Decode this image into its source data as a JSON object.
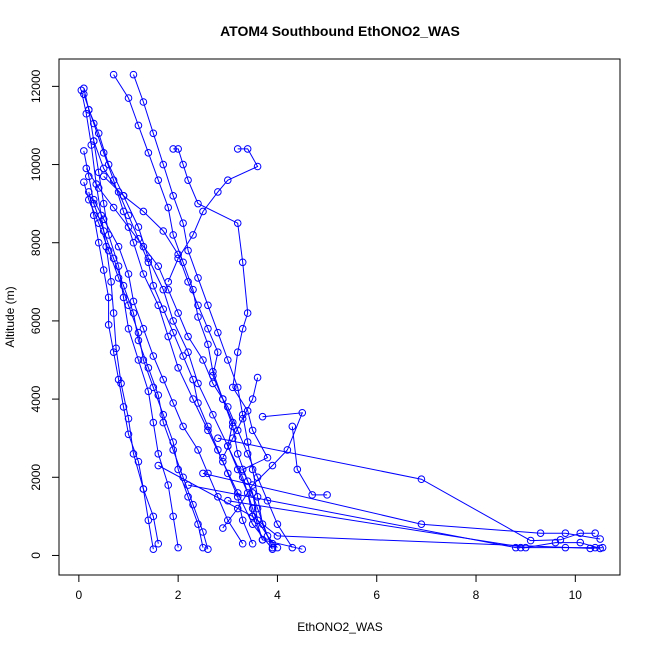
{
  "chart_data": {
    "type": "scatter",
    "title": "ATOM4 Southbound EthONO2_WAS",
    "xlabel": "EthONO2_WAS",
    "ylabel": "Altitude (m)",
    "xlim": [
      -0.4,
      10.9
    ],
    "ylim": [
      -500,
      12700
    ],
    "x_ticks": [
      "0",
      "2",
      "4",
      "6",
      "8",
      "10"
    ],
    "x_tick_values": [
      0,
      2,
      4,
      6,
      8,
      10
    ],
    "y_ticks": [
      "0",
      "2000",
      "4000",
      "6000",
      "8000",
      "10000",
      "12000"
    ],
    "y_tick_values": [
      0,
      2000,
      4000,
      6000,
      8000,
      10000,
      12000
    ],
    "grid": false,
    "legend": "none",
    "marker": "open-circle",
    "color": "#0000ff",
    "series": [
      {
        "values": [
          [
            0.1,
            11950
          ],
          [
            0.2,
            11400
          ],
          [
            0.3,
            10600
          ],
          [
            0.4,
            9800
          ],
          [
            0.5,
            9000
          ],
          [
            0.6,
            8200
          ],
          [
            0.8,
            7400
          ],
          [
            0.9,
            6600
          ],
          [
            1.0,
            5800
          ],
          [
            1.2,
            5000
          ],
          [
            1.4,
            4200
          ],
          [
            1.5,
            3400
          ],
          [
            1.6,
            2600
          ],
          [
            1.8,
            1800
          ],
          [
            1.9,
            1000
          ],
          [
            2.0,
            200
          ]
        ]
      },
      {
        "values": [
          [
            0.05,
            11900
          ],
          [
            0.15,
            11300
          ],
          [
            0.25,
            10500
          ],
          [
            0.35,
            9500
          ],
          [
            0.45,
            8700
          ],
          [
            0.55,
            7900
          ],
          [
            0.65,
            7000
          ],
          [
            0.7,
            6200
          ],
          [
            0.75,
            5300
          ],
          [
            0.85,
            4400
          ],
          [
            1.0,
            3500
          ],
          [
            1.1,
            2600
          ],
          [
            1.3,
            1700
          ],
          [
            1.4,
            900
          ],
          [
            1.5,
            160
          ]
        ]
      },
      {
        "values": [
          [
            0.1,
            11800
          ],
          [
            0.3,
            11050
          ],
          [
            0.5,
            10300
          ],
          [
            0.7,
            9600
          ],
          [
            0.9,
            8800
          ],
          [
            1.1,
            8000
          ],
          [
            1.3,
            7200
          ],
          [
            1.6,
            6400
          ],
          [
            1.8,
            5600
          ],
          [
            2.0,
            4800
          ],
          [
            2.3,
            4000
          ],
          [
            2.6,
            3200
          ],
          [
            2.9,
            2400
          ],
          [
            3.2,
            1600
          ],
          [
            3.5,
            800
          ],
          [
            3.9,
            160
          ]
        ]
      },
      {
        "values": [
          [
            0.2,
            11400
          ],
          [
            0.4,
            10800
          ],
          [
            0.6,
            10000
          ],
          [
            0.9,
            9200
          ],
          [
            1.2,
            8400
          ],
          [
            1.4,
            7600
          ],
          [
            1.7,
            6800
          ],
          [
            1.9,
            6000
          ],
          [
            2.2,
            5200
          ],
          [
            2.4,
            4400
          ],
          [
            2.7,
            3600
          ],
          [
            3.0,
            2800
          ],
          [
            3.3,
            2000
          ],
          [
            3.5,
            1200
          ],
          [
            3.7,
            400
          ],
          [
            4.5,
            160
          ]
        ]
      },
      {
        "values": [
          [
            0.1,
            10350
          ],
          [
            0.2,
            9700
          ],
          [
            0.3,
            9000
          ],
          [
            0.5,
            8300
          ],
          [
            0.7,
            7600
          ],
          [
            0.9,
            6900
          ],
          [
            1.1,
            6200
          ],
          [
            1.2,
            5500
          ],
          [
            1.4,
            4800
          ],
          [
            1.6,
            4100
          ],
          [
            1.7,
            3400
          ],
          [
            1.9,
            2700
          ],
          [
            2.1,
            2000
          ],
          [
            2.3,
            1300
          ],
          [
            2.5,
            600
          ],
          [
            2.6,
            160
          ]
        ]
      },
      {
        "values": [
          [
            0.15,
            9900
          ],
          [
            0.4,
            9400
          ],
          [
            0.7,
            8900
          ],
          [
            1.0,
            8400
          ],
          [
            1.3,
            7900
          ],
          [
            1.6,
            7400
          ],
          [
            1.8,
            6800
          ],
          [
            2.0,
            6200
          ],
          [
            2.2,
            5600
          ],
          [
            2.5,
            5000
          ],
          [
            2.7,
            4400
          ],
          [
            3.0,
            3800
          ],
          [
            3.2,
            3200
          ],
          [
            3.4,
            2600
          ],
          [
            3.6,
            2000
          ],
          [
            3.8,
            1400
          ],
          [
            4.0,
            800
          ],
          [
            4.3,
            200
          ]
        ]
      },
      {
        "values": [
          [
            0.7,
            12300
          ],
          [
            1.0,
            11700
          ],
          [
            1.2,
            11000
          ],
          [
            1.4,
            10300
          ],
          [
            1.6,
            9600
          ],
          [
            1.8,
            8900
          ],
          [
            1.9,
            8200
          ],
          [
            2.1,
            7500
          ],
          [
            2.3,
            6800
          ],
          [
            2.4,
            6100
          ],
          [
            2.6,
            5400
          ],
          [
            2.7,
            4700
          ],
          [
            2.9,
            4000
          ],
          [
            3.1,
            3300
          ],
          [
            3.2,
            2600
          ],
          [
            3.4,
            1900
          ],
          [
            3.6,
            1200
          ],
          [
            3.8,
            500
          ],
          [
            4.0,
            200
          ]
        ]
      },
      {
        "values": [
          [
            1.1,
            12300
          ],
          [
            1.3,
            11600
          ],
          [
            1.5,
            10800
          ],
          [
            1.7,
            10000
          ],
          [
            1.9,
            9200
          ],
          [
            2.1,
            8500
          ],
          [
            2.2,
            7800
          ],
          [
            2.4,
            7100
          ],
          [
            2.6,
            6400
          ],
          [
            2.8,
            5700
          ],
          [
            3.0,
            5000
          ],
          [
            3.2,
            4300
          ],
          [
            3.3,
            3600
          ],
          [
            3.4,
            2900
          ],
          [
            3.5,
            2200
          ],
          [
            3.6,
            1500
          ],
          [
            3.7,
            800
          ],
          [
            3.9,
            200
          ]
        ]
      },
      {
        "values": [
          [
            3.2,
            10400
          ],
          [
            3.4,
            10400
          ],
          [
            3.6,
            9950
          ],
          [
            3.0,
            9600
          ],
          [
            2.8,
            9300
          ],
          [
            2.5,
            8800
          ],
          [
            2.3,
            8200
          ],
          [
            2.0,
            7600
          ],
          [
            1.8,
            7000
          ]
        ]
      },
      {
        "values": [
          [
            1.9,
            10400
          ],
          [
            2.0,
            10400
          ],
          [
            2.1,
            10000
          ],
          [
            2.2,
            9600
          ],
          [
            2.4,
            9000
          ],
          [
            3.2,
            8500
          ],
          [
            3.3,
            7500
          ],
          [
            3.4,
            6200
          ],
          [
            3.3,
            5800
          ],
          [
            3.2,
            5200
          ],
          [
            3.1,
            4300
          ],
          [
            3.4,
            3700
          ],
          [
            3.5,
            3200
          ],
          [
            3.8,
            2500
          ],
          [
            3.3,
            2200
          ],
          [
            3.5,
            1600
          ],
          [
            3.6,
            900
          ],
          [
            3.9,
            300
          ]
        ]
      },
      {
        "values": [
          [
            0.3,
            9100
          ],
          [
            0.5,
            8600
          ],
          [
            0.8,
            7900
          ],
          [
            1.0,
            7200
          ],
          [
            1.1,
            6500
          ],
          [
            1.3,
            5800
          ],
          [
            1.5,
            5100
          ],
          [
            1.7,
            4500
          ],
          [
            1.9,
            3900
          ],
          [
            2.1,
            3300
          ],
          [
            2.4,
            2700
          ],
          [
            2.6,
            2100
          ],
          [
            2.8,
            1500
          ],
          [
            3.0,
            900
          ],
          [
            3.3,
            300
          ]
        ]
      },
      {
        "values": [
          [
            0.2,
            9300
          ],
          [
            0.3,
            8700
          ],
          [
            0.4,
            8000
          ],
          [
            0.5,
            7300
          ],
          [
            0.6,
            6600
          ],
          [
            0.6,
            5900
          ],
          [
            0.7,
            5200
          ],
          [
            0.8,
            4500
          ],
          [
            0.9,
            3800
          ],
          [
            1.0,
            3100
          ],
          [
            1.2,
            2400
          ],
          [
            1.3,
            1700
          ],
          [
            1.5,
            1000
          ],
          [
            1.6,
            300
          ]
        ]
      },
      {
        "values": [
          [
            0.5,
            9700
          ],
          [
            0.9,
            9200
          ],
          [
            1.3,
            8800
          ],
          [
            1.7,
            8300
          ],
          [
            2.0,
            7700
          ],
          [
            2.2,
            7000
          ],
          [
            2.4,
            6400
          ],
          [
            2.6,
            5800
          ],
          [
            2.8,
            5200
          ],
          [
            2.7,
            4600
          ],
          [
            2.9,
            4000
          ],
          [
            3.1,
            3400
          ],
          [
            3.0,
            2800
          ],
          [
            3.2,
            2200
          ],
          [
            3.4,
            1600
          ],
          [
            3.5,
            1000
          ],
          [
            3.7,
            400
          ]
        ]
      },
      {
        "values": [
          [
            0.1,
            9550
          ],
          [
            0.2,
            9100
          ],
          [
            0.4,
            8500
          ],
          [
            0.6,
            7800
          ],
          [
            0.8,
            7100
          ],
          [
            1.0,
            6400
          ],
          [
            1.2,
            5700
          ],
          [
            1.3,
            5000
          ],
          [
            1.5,
            4300
          ],
          [
            1.7,
            3600
          ],
          [
            1.9,
            2900
          ],
          [
            2.0,
            2200
          ],
          [
            2.2,
            1500
          ],
          [
            2.4,
            800
          ],
          [
            2.5,
            200
          ]
        ]
      },
      {
        "values": [
          [
            0.3,
            10600
          ],
          [
            0.5,
            9900
          ],
          [
            0.8,
            9300
          ],
          [
            1.0,
            8700
          ],
          [
            1.2,
            8100
          ],
          [
            1.4,
            7500
          ],
          [
            1.5,
            6900
          ],
          [
            1.7,
            6300
          ],
          [
            1.9,
            5700
          ],
          [
            2.1,
            5100
          ],
          [
            2.3,
            4500
          ],
          [
            2.4,
            3900
          ],
          [
            2.6,
            3300
          ],
          [
            2.8,
            2700
          ],
          [
            3.0,
            2100
          ],
          [
            3.2,
            1500
          ],
          [
            3.3,
            900
          ],
          [
            3.5,
            300
          ]
        ]
      },
      {
        "values": [
          [
            3.6,
            4550
          ],
          [
            3.5,
            4000
          ],
          [
            3.3,
            3500
          ],
          [
            3.1,
            3000
          ],
          [
            2.9,
            2500
          ]
        ]
      },
      {
        "values": [
          [
            4.3,
            3300
          ],
          [
            4.4,
            2200
          ],
          [
            4.7,
            1550
          ],
          [
            5.0,
            1550
          ]
        ]
      },
      {
        "values": [
          [
            3.7,
            3550
          ],
          [
            4.5,
            3650
          ],
          [
            4.2,
            2700
          ],
          [
            3.9,
            2300
          ],
          [
            3.5,
            1800
          ],
          [
            3.2,
            1200
          ],
          [
            2.9,
            700
          ]
        ]
      },
      {
        "values": [
          [
            2.8,
            3000
          ],
          [
            6.9,
            1950
          ],
          [
            9.1,
            380
          ],
          [
            9.7,
            400
          ],
          [
            10.1,
            570
          ],
          [
            10.4,
            570
          ]
        ]
      },
      {
        "values": [
          [
            2.5,
            2100
          ],
          [
            6.9,
            800
          ],
          [
            9.3,
            570
          ],
          [
            9.8,
            570
          ],
          [
            10.5,
            420
          ]
        ]
      },
      {
        "values": [
          [
            2.2,
            1800
          ],
          [
            8.8,
            200
          ],
          [
            8.9,
            200
          ],
          [
            9.8,
            200
          ],
          [
            10.4,
            200
          ]
        ]
      },
      {
        "values": [
          [
            3.0,
            1400
          ],
          [
            9.0,
            200
          ],
          [
            9.6,
            330
          ],
          [
            10.1,
            330
          ],
          [
            10.5,
            180
          ]
        ]
      },
      {
        "values": [
          [
            1.6,
            2300
          ],
          [
            3.5,
            1000
          ],
          [
            4.0,
            500
          ],
          [
            10.3,
            180
          ],
          [
            10.55,
            200
          ]
        ]
      }
    ]
  }
}
